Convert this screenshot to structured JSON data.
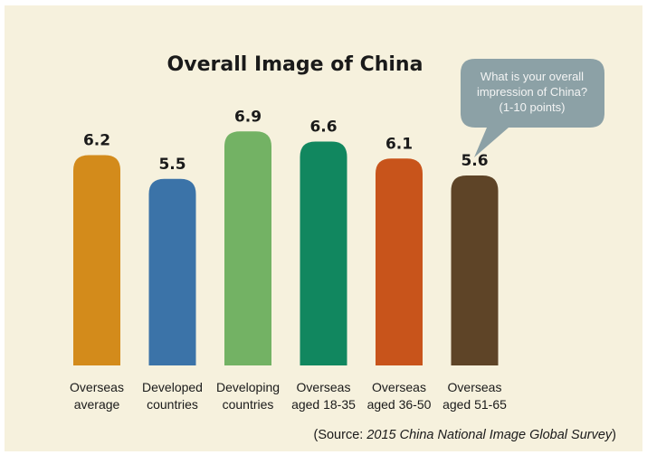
{
  "chart_data": {
    "type": "bar",
    "title": "Overall Image of China",
    "categories": [
      [
        "Overseas",
        "average"
      ],
      [
        "Developed",
        "countries"
      ],
      [
        "Developing",
        "countries"
      ],
      [
        "Overseas",
        "aged 18-35"
      ],
      [
        "Overseas",
        "aged 36-50"
      ],
      [
        "Overseas",
        "aged 51-65"
      ]
    ],
    "values": [
      6.2,
      5.5,
      6.9,
      6.6,
      6.1,
      5.6
    ],
    "value_labels": [
      "6.2",
      "5.5",
      "6.9",
      "6.6",
      "6.1",
      "5.6"
    ],
    "colors": [
      "#d38b1b",
      "#3b73a8",
      "#73b264",
      "#11875f",
      "#c8541b",
      "#5e4427"
    ],
    "xlabel": "",
    "ylabel": "",
    "ylim": [
      0,
      10
    ],
    "grid": false,
    "legend": "none",
    "bar_shape": "rounded-top"
  },
  "annotation": {
    "lines": [
      "What is your overall",
      "impression of China?",
      "(1-10 points)"
    ],
    "color": "#8ca1a6"
  },
  "source": {
    "prefix": "(Source: ",
    "emphasis": "2015 China National Image Global Survey",
    "suffix": ")"
  },
  "background_color": "#f6f1dd"
}
